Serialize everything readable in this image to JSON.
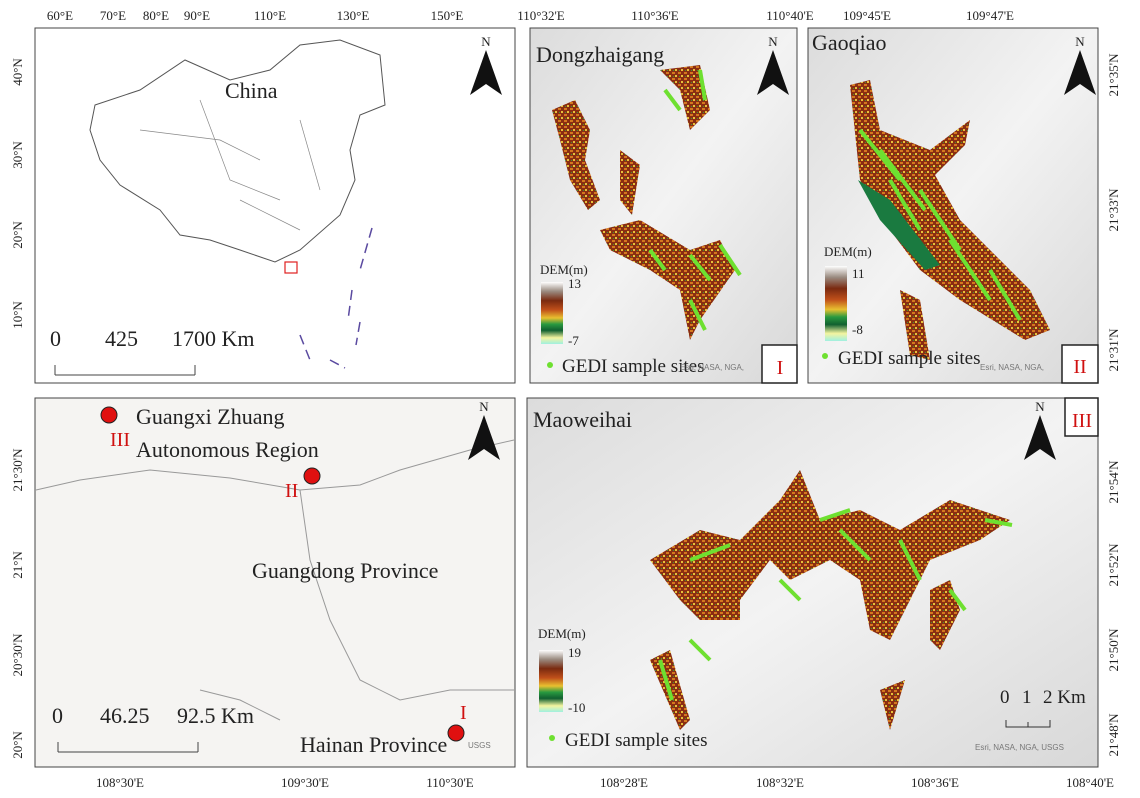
{
  "china": {
    "top_ticks": [
      "60°E",
      "70°E",
      "80°E",
      "90°E",
      "110°E",
      "130°E",
      "150°E"
    ],
    "left_ticks": [
      "40°N",
      "30°N",
      "20°N",
      "10°N"
    ],
    "label": "China",
    "scale": [
      0,
      425,
      "1700 Km"
    ],
    "north": "N"
  },
  "dongzhaigang": {
    "title": "Dongzhaigang",
    "top_ticks": [
      "110°32'E",
      "110°36'E",
      "110°40'E"
    ],
    "legend": {
      "title": "DEM(m)",
      "max": 13,
      "min": -7
    },
    "sites": "GEDI sample sites",
    "id": "I",
    "north": "N",
    "credit": "Esri, NASA, NGA,"
  },
  "gaoqiao": {
    "title": "Gaoqiao",
    "top_ticks": [
      "109°45'E",
      "109°47'E"
    ],
    "right_ticks": [
      "21°35'N",
      "21°33'N",
      "21°31'N"
    ],
    "legend": {
      "title": "DEM(m)",
      "max": 11,
      "min": -8
    },
    "sites": "GEDI sample sites",
    "id": "II",
    "north": "N",
    "credit": "Esri, NASA, NGA,"
  },
  "region": {
    "bottom_ticks": [
      "108°30'E",
      "109°30'E",
      "110°30'E"
    ],
    "left_ticks": [
      "21°30'N",
      "21°N",
      "20°30'N",
      "20°N"
    ],
    "labels": [
      "Guangxi Zhuang",
      "Autonomous Region",
      "Guangdong Province",
      "Hainan Province"
    ],
    "site_ids": [
      "III",
      "II",
      "I"
    ],
    "scale": [
      0,
      46.25,
      "92.5 Km"
    ],
    "north": "N",
    "credit": "USGS"
  },
  "maoweihai": {
    "title": "Maoweihai",
    "bottom_ticks": [
      "108°28'E",
      "108°32'E",
      "108°36'E",
      "108°40'E"
    ],
    "right_ticks": [
      "21°54'N",
      "21°52'N",
      "21°50'N",
      "21°48'N"
    ],
    "legend": {
      "title": "DEM(m)",
      "max": 19,
      "min": -10
    },
    "sites": "GEDI sample sites",
    "id": "III",
    "scale": [
      0,
      1,
      "2 Km"
    ],
    "north": "N",
    "credit": "Esri, NASA, NGA, USGS"
  }
}
